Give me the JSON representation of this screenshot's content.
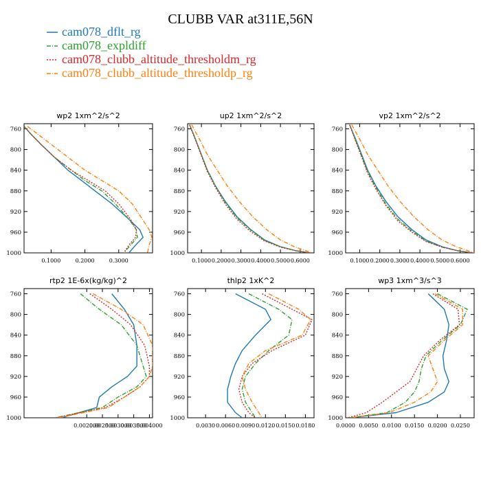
{
  "figure": {
    "title": "CLUBB VAR at311E,56N"
  },
  "legend": [
    {
      "name": "cam078_dflt_rg",
      "color": "#1f77b4",
      "dash": "solid"
    },
    {
      "name": "cam078_expldiff",
      "color": "#2ca02c",
      "dash": "dashdot"
    },
    {
      "name": "cam078_clubb_altitude_thresholdm_rg",
      "color": "#d62728",
      "dash": "dot"
    },
    {
      "name": "cam078_clubb_altitude_thresholdp_rg",
      "color": "#ff7f0e",
      "dash": "dashdot"
    }
  ],
  "chart_data": [
    {
      "type": "line",
      "title": "wp2  1xm^2/s^2",
      "ylim": [
        1000,
        750
      ],
      "xlim": [
        0.02,
        0.4
      ],
      "yticks": [
        760,
        800,
        840,
        880,
        920,
        960,
        1000
      ],
      "xticks": [
        0.1,
        0.2,
        0.3
      ],
      "xtick_labels": [
        "0.1000",
        "0.2000",
        "0.3000"
      ],
      "series": [
        {
          "name": "cam078_dflt_rg",
          "x": [
            0.02,
            0.04,
            0.07,
            0.11,
            0.15,
            0.19,
            0.23,
            0.28,
            0.33,
            0.362,
            0.372,
            0.35,
            0.33
          ],
          "y": [
            755,
            770,
            790,
            815,
            840,
            860,
            880,
            905,
            935,
            955,
            970,
            985,
            1000
          ]
        },
        {
          "name": "cam078_expldiff",
          "x": [
            0.02,
            0.04,
            0.07,
            0.11,
            0.16,
            0.2,
            0.25,
            0.29,
            0.33,
            0.352,
            0.355,
            0.335,
            0.315
          ],
          "y": [
            755,
            770,
            790,
            815,
            840,
            860,
            880,
            905,
            935,
            955,
            970,
            985,
            1000
          ]
        },
        {
          "name": "cam078_clubb_altitude_thresholdm_rg",
          "x": [
            0.02,
            0.04,
            0.07,
            0.11,
            0.16,
            0.21,
            0.26,
            0.3,
            0.335,
            0.352,
            0.35,
            0.33,
            0.315
          ],
          "y": [
            755,
            770,
            790,
            815,
            840,
            860,
            880,
            905,
            935,
            955,
            970,
            985,
            1000
          ]
        },
        {
          "name": "cam078_clubb_altitude_thresholdp_rg",
          "x": [
            0.03,
            0.06,
            0.1,
            0.15,
            0.2,
            0.25,
            0.3,
            0.34,
            0.37,
            0.39,
            0.398,
            0.39,
            0.385
          ],
          "y": [
            755,
            770,
            790,
            815,
            840,
            860,
            880,
            905,
            935,
            955,
            970,
            985,
            1000
          ]
        }
      ]
    },
    {
      "type": "line",
      "title": "up2  1xm^2/s^2",
      "ylim": [
        1000,
        750
      ],
      "xlim": [
        0.03,
        0.67
      ],
      "yticks": [
        760,
        800,
        840,
        880,
        920,
        960,
        1000
      ],
      "xticks": [
        0.1,
        0.2,
        0.3,
        0.4,
        0.5,
        0.6
      ],
      "xtick_labels": [
        "0.1000",
        "0.2000",
        "0.3000",
        "0.4000",
        "0.5000",
        "0.6000"
      ],
      "series": [
        {
          "name": "cam078_dflt_rg",
          "x": [
            0.04,
            0.07,
            0.1,
            0.13,
            0.17,
            0.22,
            0.28,
            0.35,
            0.42,
            0.5,
            0.58,
            0.65
          ],
          "y": [
            752,
            780,
            810,
            840,
            870,
            900,
            930,
            955,
            975,
            988,
            996,
            1000
          ]
        },
        {
          "name": "cam078_expldiff",
          "x": [
            0.04,
            0.07,
            0.1,
            0.13,
            0.17,
            0.22,
            0.28,
            0.35,
            0.42,
            0.5,
            0.58,
            0.65
          ],
          "y": [
            752,
            780,
            810,
            840,
            870,
            902,
            932,
            956,
            976,
            988,
            996,
            1000
          ]
        },
        {
          "name": "cam078_clubb_altitude_thresholdm_rg",
          "x": [
            0.04,
            0.07,
            0.1,
            0.13,
            0.17,
            0.22,
            0.28,
            0.35,
            0.42,
            0.5,
            0.58,
            0.65
          ],
          "y": [
            752,
            782,
            812,
            843,
            873,
            905,
            935,
            959,
            977,
            989,
            996,
            1000
          ]
        },
        {
          "name": "cam078_clubb_altitude_thresholdp_rg",
          "x": [
            0.05,
            0.09,
            0.13,
            0.18,
            0.23,
            0.29,
            0.36,
            0.43,
            0.5,
            0.57,
            0.63,
            0.66
          ],
          "y": [
            752,
            780,
            810,
            840,
            870,
            900,
            930,
            955,
            975,
            988,
            996,
            1000
          ]
        }
      ]
    },
    {
      "type": "line",
      "title": "vp2  1xm^2/s^2",
      "ylim": [
        1000,
        750
      ],
      "xlim": [
        0.03,
        0.67
      ],
      "yticks": [
        760,
        800,
        840,
        880,
        920,
        960,
        1000
      ],
      "xticks": [
        0.1,
        0.2,
        0.3,
        0.4,
        0.5,
        0.6
      ],
      "xtick_labels": [
        "0.1000",
        "0.2000",
        "0.3000",
        "0.4000",
        "0.5000",
        "0.6000"
      ],
      "series": [
        {
          "name": "cam078_dflt_rg",
          "x": [
            0.05,
            0.08,
            0.11,
            0.14,
            0.18,
            0.23,
            0.29,
            0.36,
            0.43,
            0.51,
            0.59,
            0.66
          ],
          "y": [
            752,
            780,
            810,
            840,
            870,
            900,
            930,
            955,
            975,
            988,
            996,
            1000
          ]
        },
        {
          "name": "cam078_expldiff",
          "x": [
            0.05,
            0.08,
            0.11,
            0.14,
            0.18,
            0.23,
            0.29,
            0.36,
            0.43,
            0.51,
            0.59,
            0.66
          ],
          "y": [
            752,
            782,
            813,
            843,
            873,
            905,
            935,
            958,
            977,
            989,
            996,
            1000
          ]
        },
        {
          "name": "cam078_clubb_altitude_thresholdm_rg",
          "x": [
            0.05,
            0.08,
            0.11,
            0.14,
            0.18,
            0.23,
            0.29,
            0.36,
            0.43,
            0.51,
            0.59,
            0.66
          ],
          "y": [
            752,
            784,
            815,
            846,
            876,
            908,
            938,
            960,
            978,
            989,
            996,
            1000
          ]
        },
        {
          "name": "cam078_clubb_altitude_thresholdp_rg",
          "x": [
            0.06,
            0.1,
            0.14,
            0.19,
            0.24,
            0.3,
            0.37,
            0.44,
            0.51,
            0.58,
            0.64,
            0.67
          ],
          "y": [
            752,
            780,
            810,
            840,
            870,
            900,
            930,
            955,
            975,
            988,
            996,
            1000
          ]
        }
      ]
    },
    {
      "type": "line",
      "title": "rtp2  1E-6x(kg/kg)^2",
      "ylim": [
        1000,
        750
      ],
      "xlim": [
        0.0,
        0.0041
      ],
      "yticks": [
        760,
        800,
        840,
        880,
        920,
        960,
        1000
      ],
      "xticks": [
        0.002,
        0.0025,
        0.003,
        0.0035,
        0.004
      ],
      "xtick_labels": [
        "0.002000",
        "0.002500",
        "0.003000",
        "0.003500",
        "0.004000"
      ],
      "series": [
        {
          "name": "cam078_dflt_rg",
          "x": [
            0.0028,
            0.0032,
            0.0035,
            0.0036,
            0.0036,
            0.0033,
            0.0028,
            0.0024,
            0.00232,
            0.0012
          ],
          "y": [
            760,
            790,
            820,
            860,
            900,
            920,
            940,
            960,
            980,
            1000
          ]
        },
        {
          "name": "cam078_expldiff",
          "x": [
            0.0018,
            0.0024,
            0.0031,
            0.0036,
            0.0038,
            0.0039,
            0.0036,
            0.003,
            0.0025,
            0.001
          ],
          "y": [
            760,
            790,
            820,
            860,
            900,
            920,
            940,
            960,
            980,
            1000
          ]
        },
        {
          "name": "cam078_clubb_altitude_thresholdm_rg",
          "x": [
            0.0021,
            0.0028,
            0.0034,
            0.00385,
            0.004,
            0.004,
            0.0037,
            0.0032,
            0.0026,
            0.001
          ],
          "y": [
            760,
            790,
            820,
            860,
            900,
            920,
            940,
            960,
            980,
            1000
          ]
        },
        {
          "name": "cam078_clubb_altitude_thresholdp_rg",
          "x": [
            0.0022,
            0.0031,
            0.0038,
            0.0041,
            0.0041,
            0.004,
            0.0037,
            0.0032,
            0.0027,
            0.0011
          ],
          "y": [
            760,
            790,
            820,
            860,
            900,
            920,
            940,
            960,
            980,
            1000
          ]
        }
      ]
    },
    {
      "type": "line",
      "title": "thlp2  1xK^2",
      "ylim": [
        1000,
        750
      ],
      "xlim": [
        0.0003,
        0.0193
      ],
      "yticks": [
        760,
        800,
        840,
        880,
        920,
        960,
        1000
      ],
      "xticks": [
        0.003,
        0.006,
        0.009,
        0.012,
        0.015,
        0.018
      ],
      "xtick_labels": [
        "0.0030",
        "0.0060",
        "0.0090",
        "0.0120",
        "0.0150",
        "0.0180"
      ],
      "series": [
        {
          "name": "cam078_dflt_rg",
          "x": [
            0.0075,
            0.012,
            0.0128,
            0.0105,
            0.0085,
            0.0075,
            0.0068,
            0.0063,
            0.0063,
            0.0075,
            0.0085
          ],
          "y": [
            760,
            790,
            810,
            840,
            870,
            895,
            920,
            945,
            970,
            990,
            1000
          ]
        },
        {
          "name": "cam078_expldiff",
          "x": [
            0.0095,
            0.014,
            0.016,
            0.0155,
            0.0125,
            0.0105,
            0.009,
            0.0085,
            0.009,
            0.01,
            0.0105
          ],
          "y": [
            760,
            790,
            810,
            840,
            870,
            895,
            920,
            945,
            970,
            990,
            1000
          ]
        },
        {
          "name": "cam078_clubb_altitude_thresholdm_rg",
          "x": [
            0.0115,
            0.016,
            0.019,
            0.018,
            0.013,
            0.01,
            0.0085,
            0.008,
            0.0085,
            0.0095,
            0.0105
          ],
          "y": [
            760,
            790,
            810,
            840,
            870,
            895,
            920,
            945,
            970,
            990,
            1000
          ]
        },
        {
          "name": "cam078_clubb_altitude_thresholdp_rg",
          "x": [
            0.0125,
            0.017,
            0.0188,
            0.0175,
            0.012,
            0.0095,
            0.0085,
            0.009,
            0.01,
            0.011,
            0.0115
          ],
          "y": [
            760,
            790,
            810,
            840,
            870,
            895,
            920,
            945,
            970,
            990,
            1000
          ]
        }
      ]
    },
    {
      "type": "line",
      "title": "wp3  1xm^3/s^3",
      "ylim": [
        1000,
        750
      ],
      "xlim": [
        0.0,
        0.028
      ],
      "yticks": [
        760,
        800,
        840,
        880,
        920,
        960,
        1000
      ],
      "xticks": [
        0.0,
        0.005,
        0.01,
        0.015,
        0.02,
        0.025
      ],
      "xtick_labels": [
        "0.0000",
        "0.0050",
        "0.0100",
        "0.0150",
        "0.0200",
        "0.0250"
      ],
      "series": [
        {
          "name": "cam078_dflt_rg",
          "x": [
            0.018,
            0.0215,
            0.0225,
            0.022,
            0.0212,
            0.0215,
            0.0225,
            0.0215,
            0.018,
            0.011,
            0.001
          ],
          "y": [
            760,
            790,
            820,
            850,
            880,
            905,
            930,
            950,
            970,
            990,
            1000
          ]
        },
        {
          "name": "cam078_expldiff",
          "x": [
            0.02,
            0.0265,
            0.025,
            0.021,
            0.0175,
            0.0165,
            0.016,
            0.015,
            0.013,
            0.009,
            0.001
          ],
          "y": [
            760,
            790,
            820,
            850,
            880,
            905,
            930,
            950,
            970,
            990,
            1000
          ]
        },
        {
          "name": "cam078_clubb_altitude_thresholdm_rg",
          "x": [
            0.019,
            0.0245,
            0.0248,
            0.0205,
            0.017,
            0.0155,
            0.014,
            0.011,
            0.008,
            0.0045,
            0.0005
          ],
          "y": [
            760,
            790,
            820,
            850,
            880,
            905,
            930,
            950,
            970,
            990,
            1000
          ]
        },
        {
          "name": "cam078_clubb_altitude_thresholdp_rg",
          "x": [
            0.0195,
            0.0255,
            0.0255,
            0.0215,
            0.018,
            0.019,
            0.02,
            0.0185,
            0.015,
            0.0095,
            0.001
          ],
          "y": [
            760,
            790,
            820,
            850,
            880,
            905,
            930,
            950,
            970,
            990,
            1000
          ]
        }
      ]
    }
  ]
}
